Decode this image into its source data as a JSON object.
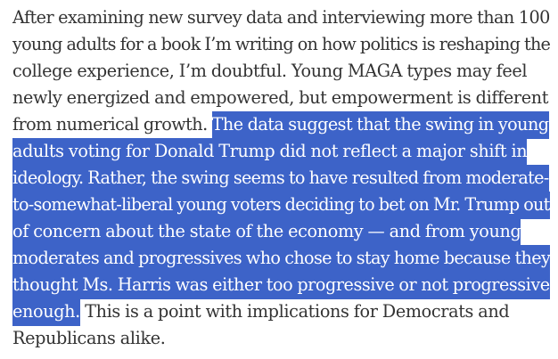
{
  "paragraph": {
    "lines": [
      {
        "plain_before": "After examining new survey data and interviewing more than 100",
        "highlighted": "",
        "plain_after": ""
      },
      {
        "plain_before": "young adults for a book I’m writing on how politics is reshaping the",
        "highlighted": "",
        "plain_after": ""
      },
      {
        "plain_before": "college experience, I’m doubtful. Young MAGA types may feel",
        "highlighted": "",
        "plain_after": ""
      },
      {
        "plain_before": "newly energized and empowered, but empowerment is different",
        "highlighted": "",
        "plain_after": ""
      },
      {
        "plain_before": "from numerical growth. ",
        "highlighted": "The data suggest that the swing in young",
        "plain_after": ""
      },
      {
        "plain_before": "",
        "highlighted": "adults voting for Donald Trump did not reflect a major shift in",
        "plain_after": ""
      },
      {
        "plain_before": "",
        "highlighted": "ideology. Rather, the swing seems to have resulted from moderate-",
        "plain_after": ""
      },
      {
        "plain_before": "",
        "highlighted": "to-somewhat-liberal young voters deciding to bet on Mr. Trump out",
        "plain_after": ""
      },
      {
        "plain_before": "",
        "highlighted": "of concern about the state of the economy — and from young",
        "plain_after": ""
      },
      {
        "plain_before": "",
        "highlighted": "moderates and progressives who chose to stay home because they",
        "plain_after": ""
      },
      {
        "plain_before": "",
        "highlighted": "thought Ms. Harris was either too progressive or not progressive",
        "plain_after": ""
      },
      {
        "plain_before": "",
        "highlighted": "enough.",
        "plain_after": " This is a point with implications for Democrats and"
      },
      {
        "plain_before": "Republicans alike.",
        "highlighted": "",
        "plain_after": ""
      }
    ]
  },
  "colors": {
    "text": "#333333",
    "selection_background": "#3d63c8",
    "selection_text": "#ffffff"
  }
}
